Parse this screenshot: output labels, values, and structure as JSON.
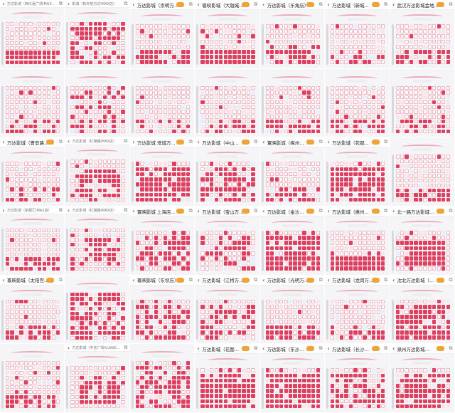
{
  "collage": {
    "grid": {
      "cols": 7,
      "rows": 6
    },
    "accent_sold": "#e0405f",
    "accent_free_border": "#f2b8c4",
    "back_icon": "‹",
    "share_icon": "⧉",
    "tiles": [
      {
        "title": "万达影城（西乐滙广场IMAX店）",
        "header": "minor",
        "density": 0.45,
        "pattern": "bottom"
      },
      {
        "title": "影城（新天地万达IMAX店）",
        "header": "minor",
        "density": 0.5,
        "pattern": "scatter"
      },
      {
        "title": "万达影城（崇明万...",
        "header": "full",
        "density": 0.3,
        "pattern": "bottom"
      },
      {
        "title": "寰映影城（大融城...",
        "header": "full",
        "density": 0.45,
        "pattern": "bottom"
      },
      {
        "title": "万达影城（乐角店）",
        "header": "full",
        "density": 0.3,
        "pattern": "bottom"
      },
      {
        "title": "万达影城（新城...",
        "header": "full",
        "density": 0.2,
        "pattern": "bottom"
      },
      {
        "title": "武汉万达影城金地...",
        "header": "full",
        "density": 0.3,
        "pattern": "bottom"
      },
      {
        "title": "",
        "header": "none",
        "density": 0.25,
        "pattern": "bottom"
      },
      {
        "title": "",
        "header": "none",
        "density": 0.3,
        "pattern": "scatter"
      },
      {
        "title": "",
        "header": "none",
        "density": 0.2,
        "pattern": "bottom"
      },
      {
        "title": "",
        "header": "none",
        "density": 0.2,
        "pattern": "bottom"
      },
      {
        "title": "",
        "header": "none",
        "density": 0.25,
        "pattern": "bottom"
      },
      {
        "title": "",
        "header": "none",
        "density": 0.3,
        "pattern": "bottom"
      },
      {
        "title": "",
        "header": "none",
        "density": 0.3,
        "pattern": "bottom"
      },
      {
        "title": "万达影城（曹安路...",
        "header": "full",
        "density": 0.2,
        "pattern": "bottom"
      },
      {
        "title": "万达影城（红旗路IMAX店）",
        "header": "minor",
        "density": 0.4,
        "pattern": "center"
      },
      {
        "title": "万达影城 增城万...",
        "header": "full",
        "density": 0.8,
        "pattern": "dense"
      },
      {
        "title": "万达影城（中山...",
        "header": "full",
        "density": 0.6,
        "pattern": "dense"
      },
      {
        "title": "寰映影城（梅州...",
        "header": "full",
        "density": 0.3,
        "pattern": "bottom"
      },
      {
        "title": "万达影城（花都...",
        "header": "full",
        "density": 0.85,
        "pattern": "dense"
      },
      {
        "title": "",
        "header": "none",
        "density": 0.3,
        "pattern": "bottom"
      },
      {
        "title": "万达影城（新都汇IMAX店）",
        "header": "minor",
        "density": 0.35,
        "pattern": "bottom"
      },
      {
        "title": "万达影城（红旗路IMAX店）",
        "header": "minor",
        "density": 0.35,
        "pattern": "center"
      },
      {
        "title": "寰映影城 上海店...",
        "header": "full",
        "density": 0.5,
        "pattern": "dense"
      },
      {
        "title": "万达影城（宝山万...",
        "header": "full",
        "density": 0.5,
        "pattern": "dense"
      },
      {
        "title": "万达影城（金沙...",
        "header": "full",
        "density": 0.8,
        "pattern": "dense"
      },
      {
        "title": "万达影城（惠州...",
        "header": "full",
        "density": 0.45,
        "pattern": "bottom"
      },
      {
        "title": "北一路万达影城...",
        "header": "full",
        "density": 0.55,
        "pattern": "center"
      },
      {
        "title": "寰映影城（太阳宫...",
        "header": "full",
        "density": 0.3,
        "pattern": "bottom"
      },
      {
        "title": "",
        "header": "none",
        "density": 0.6,
        "pattern": "scatter"
      },
      {
        "title": "寰映影城（东坝店）",
        "header": "full",
        "density": 0.55,
        "pattern": "dense"
      },
      {
        "title": "万达影城（江桥万...",
        "header": "full",
        "density": 0.45,
        "pattern": "dense"
      },
      {
        "title": "万达影城（光明万...",
        "header": "full",
        "density": 0.3,
        "pattern": "bottom"
      },
      {
        "title": "万达影城（龙岗万...",
        "header": "full",
        "density": 0.25,
        "pattern": "bottom"
      },
      {
        "title": "沈北万达影城（...",
        "header": "full",
        "density": 0.75,
        "pattern": "dense"
      },
      {
        "title": "",
        "header": "none",
        "density": 0.3,
        "pattern": "bottom"
      },
      {
        "title": "万达影城（中信广场XLAND店）",
        "header": "minor",
        "density": 0.4,
        "pattern": "center"
      },
      {
        "title": "",
        "header": "none",
        "density": 0.55,
        "pattern": "dense"
      },
      {
        "title": "万达影城（花都...",
        "header": "full",
        "density": 0.9,
        "pattern": "dense"
      },
      {
        "title": "万达影城（东沙...",
        "header": "full",
        "density": 0.85,
        "pattern": "dense"
      },
      {
        "title": "万达影城（长沙...",
        "header": "full",
        "density": 0.5,
        "pattern": "dense"
      },
      {
        "title": "泉州万达影城...",
        "header": "full",
        "density": 0.8,
        "pattern": "dense"
      }
    ]
  }
}
